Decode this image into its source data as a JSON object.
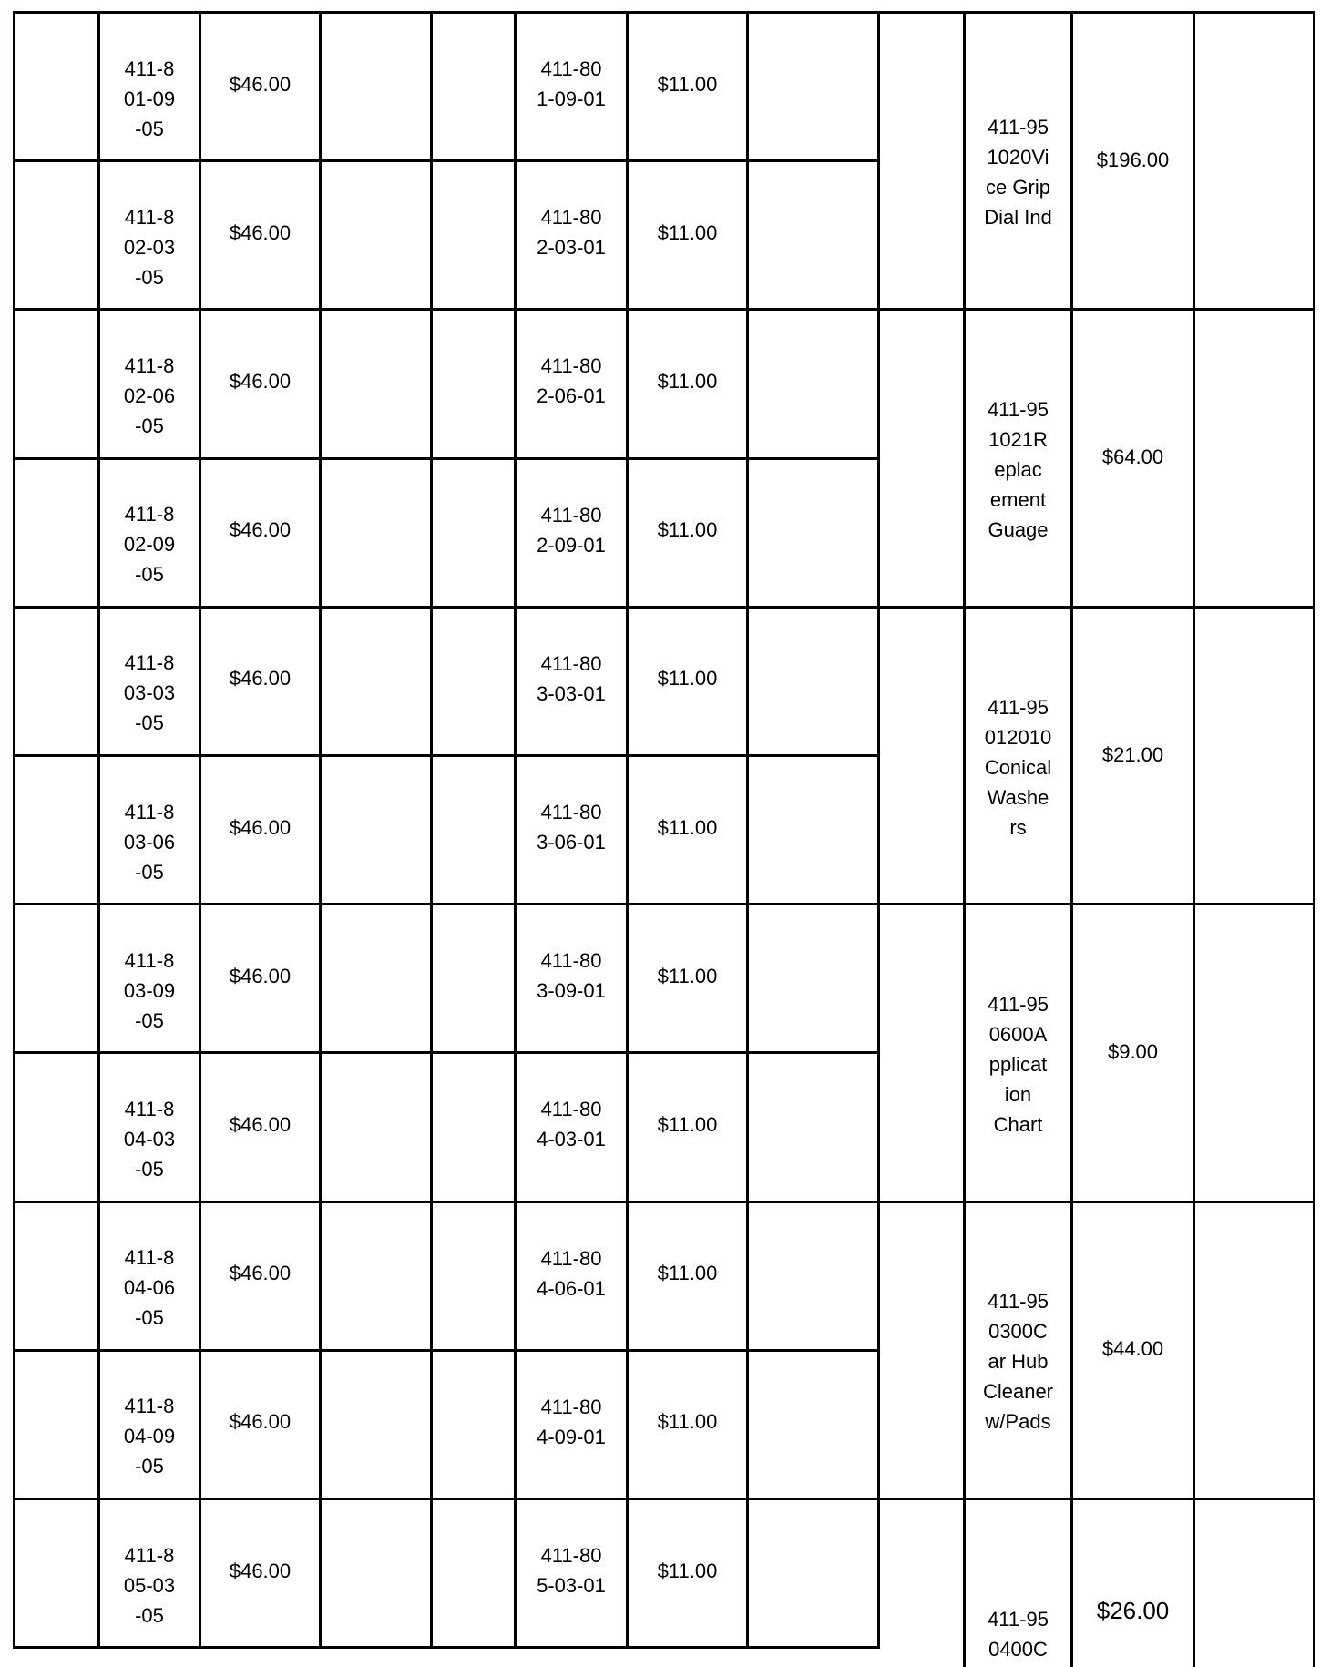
{
  "left_rows": [
    {
      "part_a": [
        "411-8",
        "01-09",
        "-05"
      ],
      "price_a": "$46.00",
      "part_b": [
        "411-80",
        "1-09-01"
      ],
      "price_b": "$11.00"
    },
    {
      "part_a": [
        "411-8",
        "02-03",
        "-05"
      ],
      "price_a": "$46.00",
      "part_b": [
        "411-80",
        "2-03-01"
      ],
      "price_b": "$11.00"
    },
    {
      "part_a": [
        "411-8",
        "02-06",
        "-05"
      ],
      "price_a": "$46.00",
      "part_b": [
        "411-80",
        "2-06-01"
      ],
      "price_b": "$11.00"
    },
    {
      "part_a": [
        "411-8",
        "02-09",
        "-05"
      ],
      "price_a": "$46.00",
      "part_b": [
        "411-80",
        "2-09-01"
      ],
      "price_b": "$11.00"
    },
    {
      "part_a": [
        "411-8",
        "03-03",
        "-05"
      ],
      "price_a": "$46.00",
      "part_b": [
        "411-80",
        "3-03-01"
      ],
      "price_b": "$11.00"
    },
    {
      "part_a": [
        "411-8",
        "03-06",
        "-05"
      ],
      "price_a": "$46.00",
      "part_b": [
        "411-80",
        "3-06-01"
      ],
      "price_b": "$11.00"
    },
    {
      "part_a": [
        "411-8",
        "03-09",
        "-05"
      ],
      "price_a": "$46.00",
      "part_b": [
        "411-80",
        "3-09-01"
      ],
      "price_b": "$11.00"
    },
    {
      "part_a": [
        "411-8",
        "04-03",
        "-05"
      ],
      "price_a": "$46.00",
      "part_b": [
        "411-80",
        "4-03-01"
      ],
      "price_b": "$11.00"
    },
    {
      "part_a": [
        "411-8",
        "04-06",
        "-05"
      ],
      "price_a": "$46.00",
      "part_b": [
        "411-80",
        "4-06-01"
      ],
      "price_b": "$11.00"
    },
    {
      "part_a": [
        "411-8",
        "04-09",
        "-05"
      ],
      "price_a": "$46.00",
      "part_b": [
        "411-80",
        "4-09-01"
      ],
      "price_b": "$11.00"
    },
    {
      "part_a": [
        "411-8",
        "05-03",
        "-05"
      ],
      "price_a": "$46.00",
      "part_b": [
        "411-80",
        "5-03-01"
      ],
      "price_b": "$11.00"
    }
  ],
  "right_groups": [
    {
      "item": [
        "411-95",
        "1020Vi",
        "ce Grip",
        "Dial Ind"
      ],
      "price": "$196.00"
    },
    {
      "item": [
        "411-95",
        "1021R",
        "eplac",
        "ement",
        "Guage"
      ],
      "price": "$64.00"
    },
    {
      "item": [
        "411-95",
        "012010",
        "Conical",
        "Washe",
        "rs"
      ],
      "price": "$21.00"
    },
    {
      "item": [
        "411-95",
        "0600A",
        "pplicat",
        "ion",
        "Chart"
      ],
      "price": "$9.00"
    },
    {
      "item": [
        "411-95",
        "0300C",
        "ar Hub",
        "Cleaner",
        "w/Pads"
      ],
      "price": "$44.00"
    },
    {
      "item": [
        "411-95",
        "0400C"
      ],
      "price": "$26.00"
    }
  ]
}
